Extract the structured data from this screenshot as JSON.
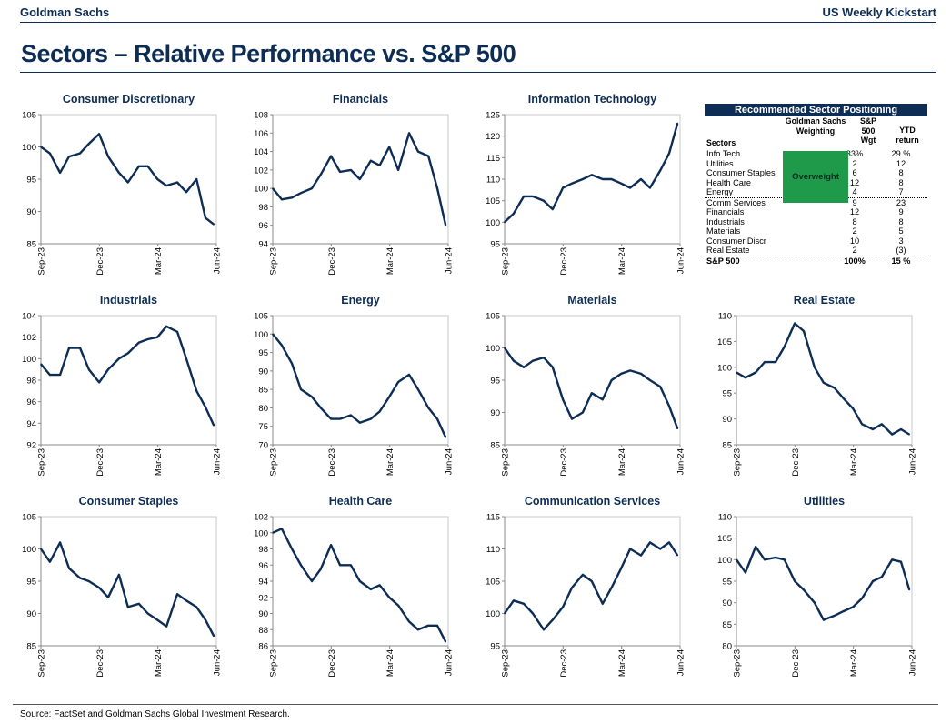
{
  "header": {
    "brand": "Goldman Sachs",
    "publication": "US Weekly Kickstart"
  },
  "title": "Sectors – Relative Performance vs. S&P 500",
  "source": "Source: FactSet and Goldman Sachs Global Investment Research.",
  "line_color": "#0d2d55",
  "x_tick_labels": [
    "Sep-23",
    "Dec-23",
    "Mar-24",
    "Jun-24"
  ],
  "x_range": [
    "2023-09-01",
    "2024-06-01"
  ],
  "chart_data": [
    {
      "type": "line",
      "title": "Consumer Discretionary",
      "ylim": [
        85,
        105
      ],
      "yticks": [
        85,
        90,
        95,
        100,
        105
      ],
      "x": [
        "2023-09-01",
        "2023-09-15",
        "2023-10-01",
        "2023-10-15",
        "2023-11-01",
        "2023-11-15",
        "2023-12-01",
        "2023-12-15",
        "2024-01-01",
        "2024-01-15",
        "2024-02-01",
        "2024-02-15",
        "2024-03-01",
        "2024-03-15",
        "2024-04-01",
        "2024-04-15",
        "2024-05-01",
        "2024-05-15",
        "2024-05-28"
      ],
      "y": [
        100,
        99,
        96,
        98.5,
        99,
        100.5,
        102,
        98.5,
        96,
        94.5,
        97,
        97,
        95,
        94,
        94.5,
        93,
        95,
        89,
        88
      ]
    },
    {
      "type": "line",
      "title": "Financials",
      "ylim": [
        94,
        108
      ],
      "yticks": [
        94,
        96,
        98,
        100,
        102,
        104,
        106,
        108
      ],
      "x": [
        "2023-09-01",
        "2023-09-15",
        "2023-10-01",
        "2023-10-15",
        "2023-11-01",
        "2023-11-15",
        "2023-12-01",
        "2023-12-15",
        "2024-01-01",
        "2024-01-15",
        "2024-02-01",
        "2024-02-15",
        "2024-03-01",
        "2024-03-15",
        "2024-04-01",
        "2024-04-15",
        "2024-05-01",
        "2024-05-15",
        "2024-05-28"
      ],
      "y": [
        100,
        98.8,
        99,
        99.5,
        100,
        101.5,
        103.5,
        101.8,
        102,
        101,
        103,
        102.5,
        104.5,
        102,
        106,
        104,
        103.5,
        100,
        96
      ]
    },
    {
      "type": "line",
      "title": "Information Technology",
      "ylim": [
        95,
        125
      ],
      "yticks": [
        95,
        100,
        105,
        110,
        115,
        120,
        125
      ],
      "x": [
        "2023-09-01",
        "2023-09-15",
        "2023-10-01",
        "2023-10-15",
        "2023-11-01",
        "2023-11-15",
        "2023-12-01",
        "2023-12-15",
        "2024-01-01",
        "2024-01-15",
        "2024-02-01",
        "2024-02-15",
        "2024-03-01",
        "2024-03-15",
        "2024-04-01",
        "2024-04-15",
        "2024-05-01",
        "2024-05-15",
        "2024-05-28"
      ],
      "y": [
        100,
        102,
        106,
        106,
        105,
        103,
        108,
        109,
        110,
        111,
        110,
        110,
        109,
        108,
        110,
        108,
        112,
        116,
        123
      ]
    },
    {
      "type": "line",
      "title": "Industrials",
      "ylim": [
        92,
        104
      ],
      "yticks": [
        92,
        94,
        96,
        98,
        100,
        102,
        104
      ],
      "x": [
        "2023-09-01",
        "2023-09-15",
        "2023-10-01",
        "2023-10-15",
        "2023-11-01",
        "2023-11-15",
        "2023-12-01",
        "2023-12-15",
        "2024-01-01",
        "2024-01-15",
        "2024-02-01",
        "2024-02-15",
        "2024-03-01",
        "2024-03-15",
        "2024-04-01",
        "2024-04-15",
        "2024-05-01",
        "2024-05-15",
        "2024-05-28"
      ],
      "y": [
        99.5,
        98.5,
        98.5,
        101,
        101,
        99,
        97.8,
        99,
        100,
        100.5,
        101.5,
        101.8,
        102,
        103,
        102.5,
        100,
        97,
        95.5,
        93.8
      ]
    },
    {
      "type": "line",
      "title": "Energy",
      "ylim": [
        70,
        105
      ],
      "yticks": [
        70,
        75,
        80,
        85,
        90,
        95,
        100,
        105
      ],
      "x": [
        "2023-09-01",
        "2023-09-15",
        "2023-10-01",
        "2023-10-15",
        "2023-11-01",
        "2023-11-15",
        "2023-12-01",
        "2023-12-15",
        "2024-01-01",
        "2024-01-15",
        "2024-02-01",
        "2024-02-15",
        "2024-03-01",
        "2024-03-15",
        "2024-04-01",
        "2024-04-15",
        "2024-05-01",
        "2024-05-15",
        "2024-05-28"
      ],
      "y": [
        100,
        97,
        92,
        85,
        83,
        80,
        77,
        77,
        78,
        76,
        77,
        79,
        83,
        87,
        89,
        85,
        80,
        77,
        72
      ]
    },
    {
      "type": "line",
      "title": "Materials",
      "ylim": [
        85,
        105
      ],
      "yticks": [
        85,
        90,
        95,
        100,
        105
      ],
      "x": [
        "2023-09-01",
        "2023-09-15",
        "2023-10-01",
        "2023-10-15",
        "2023-11-01",
        "2023-11-15",
        "2023-12-01",
        "2023-12-15",
        "2024-01-01",
        "2024-01-15",
        "2024-02-01",
        "2024-02-15",
        "2024-03-01",
        "2024-03-15",
        "2024-04-01",
        "2024-04-15",
        "2024-05-01",
        "2024-05-15",
        "2024-05-28"
      ],
      "y": [
        100,
        98,
        97,
        98,
        98.5,
        97,
        92,
        89,
        90,
        93,
        92,
        95,
        96,
        96.5,
        96,
        95,
        94,
        91,
        87.5
      ]
    },
    {
      "type": "line",
      "title": "Real Estate",
      "ylim": [
        85,
        110
      ],
      "yticks": [
        85,
        90,
        95,
        100,
        105,
        110
      ],
      "x": [
        "2023-09-01",
        "2023-09-15",
        "2023-10-01",
        "2023-10-15",
        "2023-11-01",
        "2023-11-15",
        "2023-12-01",
        "2023-12-15",
        "2024-01-01",
        "2024-01-15",
        "2024-02-01",
        "2024-02-15",
        "2024-03-01",
        "2024-03-15",
        "2024-04-01",
        "2024-04-15",
        "2024-05-01",
        "2024-05-15",
        "2024-05-28"
      ],
      "y": [
        99,
        98,
        99,
        101,
        101,
        104,
        108.5,
        107,
        100,
        97,
        96,
        94,
        92,
        89,
        88,
        89,
        87,
        88,
        87
      ]
    },
    {
      "type": "line",
      "title": "Consumer Staples",
      "ylim": [
        85,
        105
      ],
      "yticks": [
        85,
        90,
        95,
        100,
        105
      ],
      "x": [
        "2023-09-01",
        "2023-09-15",
        "2023-10-01",
        "2023-10-15",
        "2023-11-01",
        "2023-11-15",
        "2023-12-01",
        "2023-12-15",
        "2024-01-01",
        "2024-01-15",
        "2024-02-01",
        "2024-02-15",
        "2024-03-01",
        "2024-03-15",
        "2024-04-01",
        "2024-04-15",
        "2024-05-01",
        "2024-05-15",
        "2024-05-28"
      ],
      "y": [
        100,
        98,
        101,
        97,
        95.5,
        95,
        94,
        92.5,
        96,
        91,
        91.5,
        90,
        89,
        88,
        93,
        92,
        91,
        89,
        86.5
      ]
    },
    {
      "type": "line",
      "title": "Health Care",
      "ylim": [
        86,
        102
      ],
      "yticks": [
        86,
        88,
        90,
        92,
        94,
        96,
        98,
        100,
        102
      ],
      "x": [
        "2023-09-01",
        "2023-09-15",
        "2023-10-01",
        "2023-10-15",
        "2023-11-01",
        "2023-11-15",
        "2023-12-01",
        "2023-12-15",
        "2024-01-01",
        "2024-01-15",
        "2024-02-01",
        "2024-02-15",
        "2024-03-01",
        "2024-03-15",
        "2024-04-01",
        "2024-04-15",
        "2024-05-01",
        "2024-05-15",
        "2024-05-28"
      ],
      "y": [
        100,
        100.5,
        98,
        96,
        94,
        95.5,
        98.5,
        96,
        96,
        94,
        93,
        93.5,
        92,
        91,
        89,
        88,
        88.5,
        88.5,
        86.5
      ]
    },
    {
      "type": "line",
      "title": "Communication Services",
      "ylim": [
        95,
        115
      ],
      "yticks": [
        95,
        100,
        105,
        110,
        115
      ],
      "x": [
        "2023-09-01",
        "2023-09-15",
        "2023-10-01",
        "2023-10-15",
        "2023-11-01",
        "2023-11-15",
        "2023-12-01",
        "2023-12-15",
        "2024-01-01",
        "2024-01-15",
        "2024-02-01",
        "2024-02-15",
        "2024-03-01",
        "2024-03-15",
        "2024-04-01",
        "2024-04-15",
        "2024-05-01",
        "2024-05-15",
        "2024-05-28"
      ],
      "y": [
        100,
        102,
        101.5,
        100,
        97.5,
        99,
        101,
        104,
        106,
        105,
        101.5,
        104,
        107,
        110,
        109,
        111,
        110,
        111,
        109
      ]
    },
    {
      "type": "line",
      "title": "Utilities",
      "ylim": [
        80,
        110
      ],
      "yticks": [
        80,
        85,
        90,
        95,
        100,
        105,
        110
      ],
      "x": [
        "2023-09-01",
        "2023-09-15",
        "2023-10-01",
        "2023-10-15",
        "2023-11-01",
        "2023-11-15",
        "2023-12-01",
        "2023-12-15",
        "2024-01-01",
        "2024-01-15",
        "2024-02-01",
        "2024-02-15",
        "2024-03-01",
        "2024-03-15",
        "2024-04-01",
        "2024-04-15",
        "2024-05-01",
        "2024-05-15",
        "2024-05-28"
      ],
      "y": [
        100,
        97,
        103,
        100,
        100.5,
        100,
        95,
        93,
        90,
        86,
        87,
        88,
        89,
        91,
        95,
        96,
        100,
        99.5,
        93
      ]
    }
  ],
  "table": {
    "title": "Recommended Sector Positioning",
    "headers": {
      "sectors": "Sectors",
      "weighting": "Goldman Sachs Weighting",
      "wgt": "S&P 500 Wgt",
      "ytd": "YTD return"
    },
    "overweight_label": "Overweight",
    "overweight_color": "#1e9a4a",
    "rows": [
      {
        "sector": "Info Tech",
        "wgt": "33%",
        "ytd": "29 %"
      },
      {
        "sector": "Utilities",
        "wgt": "2",
        "ytd": "12"
      },
      {
        "sector": "Consumer Staples",
        "wgt": "6",
        "ytd": "8"
      },
      {
        "sector": "Health Care",
        "wgt": "12",
        "ytd": "8"
      },
      {
        "sector": "Energy",
        "wgt": "4",
        "ytd": "7"
      },
      {
        "sector": "Comm Services",
        "wgt": "9",
        "ytd": "23"
      },
      {
        "sector": "Financials",
        "wgt": "12",
        "ytd": "9"
      },
      {
        "sector": "Industrials",
        "wgt": "8",
        "ytd": "8"
      },
      {
        "sector": "Materials",
        "wgt": "2",
        "ytd": "5"
      },
      {
        "sector": "Consumer Discr",
        "wgt": "10",
        "ytd": "3"
      },
      {
        "sector": "Real Estate",
        "wgt": "2",
        "ytd": "(3)"
      }
    ],
    "total": {
      "sector": "S&P 500",
      "wgt": "100%",
      "ytd": "15 %"
    }
  }
}
